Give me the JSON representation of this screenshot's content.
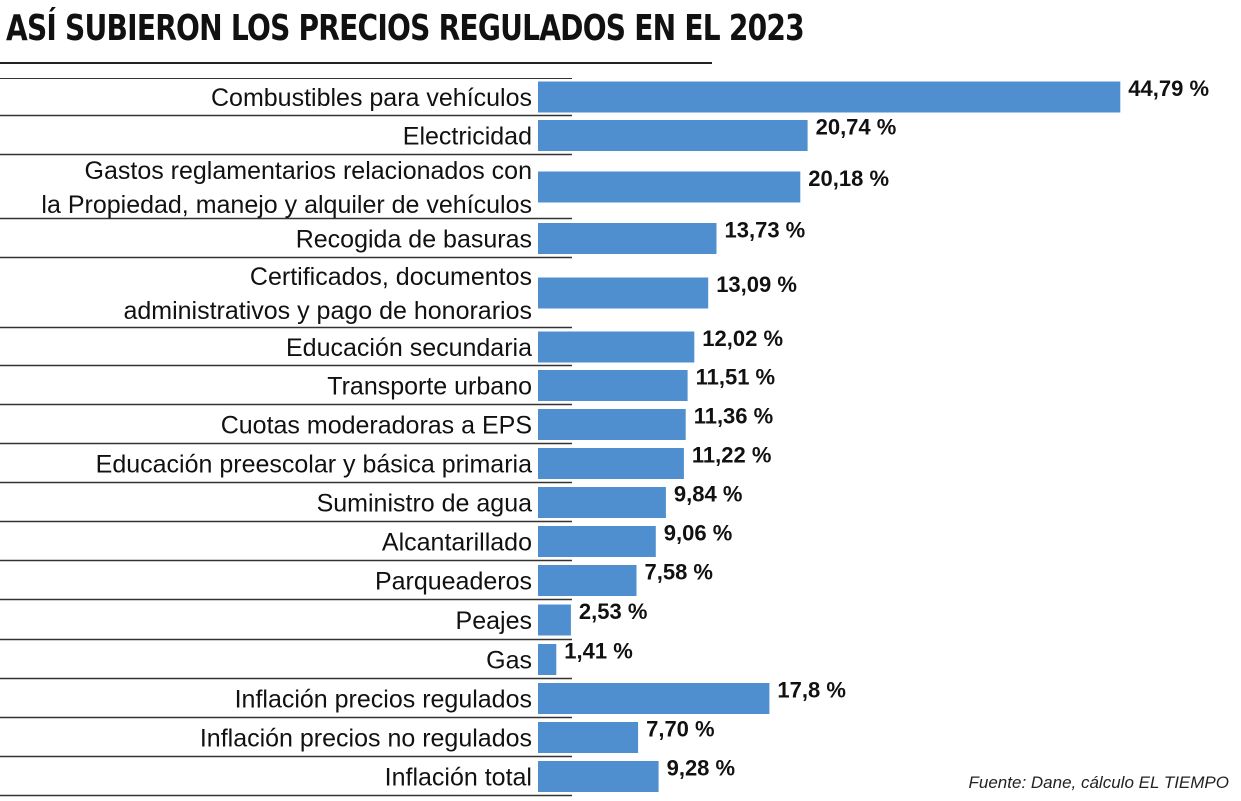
{
  "title": "ASÍ SUBIERON LOS PRECIOS REGULADOS EN EL 2023",
  "source": "Fuente: Dane, cálculo EL TIEMPO",
  "colors": {
    "bar": "#4f8fcf",
    "text": "#111111",
    "rule": "#333333"
  },
  "chart_data": {
    "type": "bar",
    "orientation": "horizontal",
    "title": "ASÍ SUBIERON LOS PRECIOS REGULADOS EN EL 2023",
    "unit": "%",
    "xlim": [
      0,
      45
    ],
    "grid": false,
    "categories": [
      [
        "Combustibles para vehículos"
      ],
      [
        "Electricidad"
      ],
      [
        "Gastos reglamentarios relacionados con",
        "la Propiedad, manejo y alquiler de vehículos"
      ],
      [
        "Recogida de basuras"
      ],
      [
        "Certificados, documentos",
        "administrativos y pago de honorarios"
      ],
      [
        "Educación secundaria"
      ],
      [
        "Transporte urbano"
      ],
      [
        "Cuotas moderadoras a EPS"
      ],
      [
        "Educación preescolar y básica primaria"
      ],
      [
        "Suministro de agua"
      ],
      [
        "Alcantarillado"
      ],
      [
        "Parqueaderos"
      ],
      [
        "Peajes"
      ],
      [
        "Gas"
      ],
      [
        "Inflación precios regulados"
      ],
      [
        "Inflación precios no regulados"
      ],
      [
        "Inflación total"
      ]
    ],
    "values": [
      44.79,
      20.74,
      20.18,
      13.73,
      13.09,
      12.02,
      11.51,
      11.36,
      11.22,
      9.84,
      9.06,
      7.58,
      2.53,
      1.41,
      17.8,
      7.7,
      9.28
    ],
    "value_labels": [
      "44,79 %",
      "20,74 %",
      "20,18 %",
      "13,73 %",
      "13,09 %",
      "12,02 %",
      "11,51 %",
      "11,36 %",
      "11,22 %",
      "9,84 %",
      "9,06 %",
      "7,58 %",
      "2,53 %",
      "1,41 %",
      "17,8  %",
      "7,70 %",
      "9,28 %"
    ]
  }
}
